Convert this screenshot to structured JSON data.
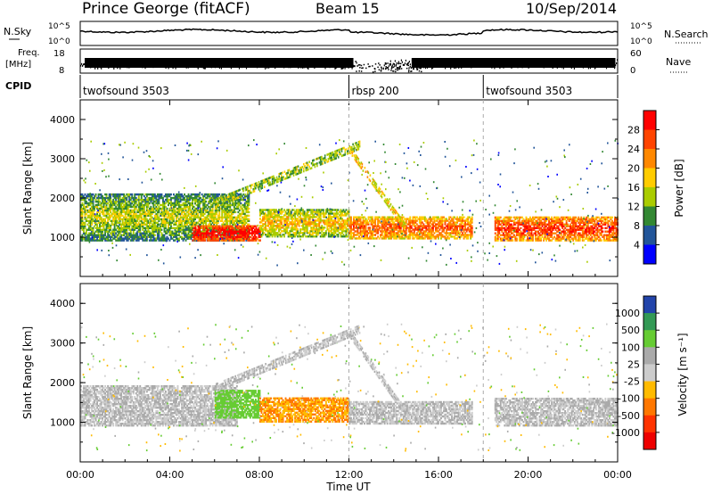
{
  "header": {
    "station": "Prince George (fitACF)",
    "beam": "Beam 15",
    "date": "10/Sep/2014"
  },
  "summary_panels": {
    "nsky_label": "N.Sky",
    "nsky_ticks": [
      "10^5",
      "10^0"
    ],
    "nsearch_label": "N.Search",
    "nsearch_ticks": [
      "10^5",
      "10^0"
    ],
    "freq_label": "Freq.",
    "freq_unit": "[MHz]",
    "freq_ticks": [
      "18",
      "8"
    ],
    "nave_label": "Nave",
    "nave_ticks": [
      "60",
      "0"
    ],
    "cpid_label": "CPID",
    "cpid_segments": [
      {
        "label": "twofsound 3503",
        "start_h": 0,
        "end_h": 12
      },
      {
        "label": "rbsp 200",
        "start_h": 12,
        "end_h": 18
      },
      {
        "label": "twofsound 3503",
        "start_h": 18,
        "end_h": 24
      }
    ]
  },
  "colorbars": {
    "power": {
      "label": "Power [dB]",
      "ticks": [
        "28",
        "24",
        "20",
        "16",
        "12",
        "8",
        "4"
      ],
      "colors": [
        "#ff0000",
        "#ff4400",
        "#ff8800",
        "#ffcc00",
        "#aacc00",
        "#338833",
        "#225599",
        "#0000ff"
      ]
    },
    "velocity": {
      "label": "Velocity [m s⁻¹]",
      "ticks": [
        "1000",
        "500",
        "100",
        "25",
        "-25",
        "-100",
        "-500",
        "-1000"
      ],
      "colors": [
        "#2244aa",
        "#339955",
        "#66cc33",
        "#aaaaaa",
        "#cccccc",
        "#ffbb00",
        "#ff7700",
        "#ff3300",
        "#ee0000"
      ]
    }
  },
  "chart_data": [
    {
      "type": "heatmap",
      "name": "power",
      "xlabel": "",
      "ylabel": "Slant Range [km]",
      "x_range_hours": [
        0,
        24
      ],
      "ylim": [
        0,
        4500
      ],
      "y_ticks": [
        "4000",
        "3000",
        "2000",
        "1000"
      ],
      "description_bands": [
        {
          "t0": 0,
          "t1": 7.5,
          "r0": 900,
          "r1": 2100,
          "dominant_db": 10
        },
        {
          "t0": 5,
          "t1": 8,
          "r0": 900,
          "r1": 1300,
          "dominant_db": 26
        },
        {
          "t0": 8,
          "t1": 12,
          "r0": 1000,
          "r1": 1700,
          "dominant_db": 14
        },
        {
          "t0": 12,
          "t1": 17.5,
          "r0": 950,
          "r1": 1500,
          "dominant_db": 20
        },
        {
          "t0": 18.5,
          "t1": 24,
          "r0": 900,
          "r1": 1500,
          "dominant_db": 22
        }
      ]
    },
    {
      "type": "heatmap",
      "name": "velocity",
      "xlabel": "Time UT",
      "ylabel": "Slant Range [km]",
      "x_range_hours": [
        0,
        24
      ],
      "ylim": [
        0,
        4500
      ],
      "y_ticks": [
        "4000",
        "3000",
        "2000",
        "1000"
      ],
      "x_ticks": [
        "00:00",
        "04:00",
        "08:00",
        "12:00",
        "16:00",
        "20:00",
        "00:00"
      ],
      "description_bands": [
        {
          "t0": 0,
          "t1": 7,
          "r0": 900,
          "r1": 1900,
          "dominant_ms": 0
        },
        {
          "t0": 6,
          "t1": 8,
          "r0": 1100,
          "r1": 1800,
          "dominant_ms": 200
        },
        {
          "t0": 8,
          "t1": 12,
          "r0": 1000,
          "r1": 1600,
          "dominant_ms": -300
        },
        {
          "t0": 12,
          "t1": 17.5,
          "r0": 950,
          "r1": 1500,
          "dominant_ms": 0
        },
        {
          "t0": 18.5,
          "t1": 24,
          "r0": 900,
          "r1": 1600,
          "dominant_ms": 0
        }
      ]
    }
  ]
}
